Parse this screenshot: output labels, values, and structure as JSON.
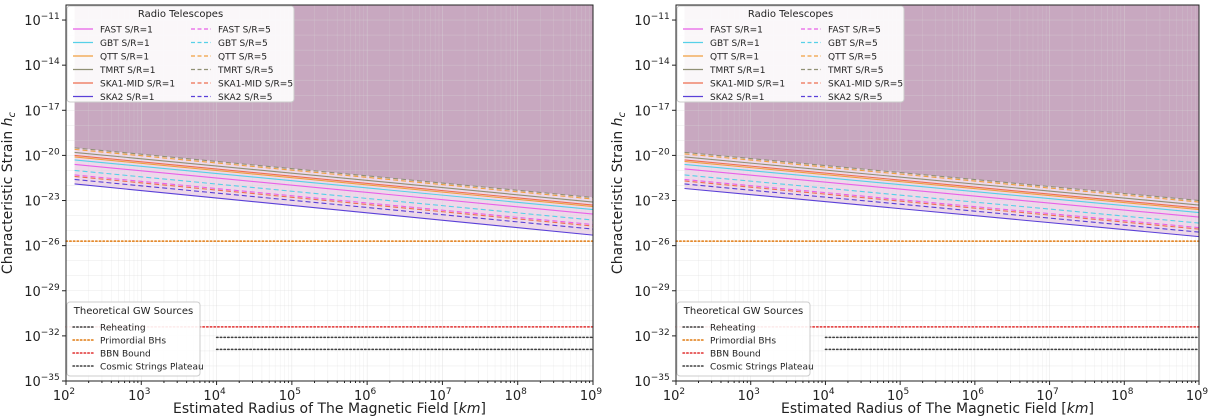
{
  "chart_data": [
    {
      "type": "line",
      "xlabel": "Estimated Radius of The Magnetic Field",
      "xlabel_unit": "km",
      "ylabel": "Characteristic Strain",
      "ylabel_symbol": "h",
      "ylabel_subscript": "c",
      "xscale": "log",
      "yscale": "log",
      "xlim": [
        100,
        1000000000
      ],
      "ylim": [
        1e-35,
        1e-10
      ],
      "x_ticks": [
        2,
        3,
        4,
        5,
        6,
        7,
        8,
        9
      ],
      "y_ticks": [
        -35,
        -32,
        -29,
        -26,
        -23,
        -20,
        -17,
        -14,
        -11
      ],
      "tick_base": "10",
      "grid": true,
      "legend_telescopes": {
        "title": "Radio Telescopes",
        "placement": "top-left"
      },
      "legend_sources": {
        "title": "Theoretical GW Sources",
        "placement": "lower-left"
      },
      "telescope_series": [
        {
          "name": "FAST S/R=1",
          "color": "#e860e8",
          "style": "solid",
          "x": [
            130,
            1000000000
          ],
          "y": [
            -20.6,
            -23.9
          ]
        },
        {
          "name": "GBT S/R=1",
          "color": "#56d0e8",
          "style": "solid",
          "x": [
            130,
            1000000000
          ],
          "y": [
            -20.3,
            -23.6
          ]
        },
        {
          "name": "QTT S/R=1",
          "color": "#f0a040",
          "style": "solid",
          "x": [
            130,
            1000000000
          ],
          "y": [
            -20.1,
            -23.4
          ]
        },
        {
          "name": "TMRT S/R=1",
          "color": "#909075",
          "style": "solid",
          "x": [
            130,
            1000000000
          ],
          "y": [
            -19.8,
            -23.1
          ]
        },
        {
          "name": "SKA1-MID S/R=1",
          "color": "#ee6e50",
          "style": "solid",
          "x": [
            130,
            1000000000
          ],
          "y": [
            -20.0,
            -23.3
          ]
        },
        {
          "name": "SKA2 S/R=1",
          "color": "#5a40d8",
          "style": "solid",
          "x": [
            130,
            1000000000
          ],
          "y": [
            -21.9,
            -25.3
          ]
        },
        {
          "name": "FAST S/R=5",
          "color": "#e860e8",
          "style": "dashed",
          "x": [
            130,
            1000000000
          ],
          "y": [
            -21.3,
            -24.6
          ]
        },
        {
          "name": "GBT S/R=5",
          "color": "#56d0e8",
          "style": "dashed",
          "x": [
            130,
            1000000000
          ],
          "y": [
            -21.0,
            -24.3
          ]
        },
        {
          "name": "QTT S/R=5",
          "color": "#f0a040",
          "style": "dashed",
          "x": [
            130,
            1000000000
          ],
          "y": [
            -19.6,
            -22.9
          ]
        },
        {
          "name": "TMRT S/R=5",
          "color": "#909075",
          "style": "dashed",
          "x": [
            130,
            1000000000
          ],
          "y": [
            -19.5,
            -22.8
          ]
        },
        {
          "name": "SKA1-MID S/R=5",
          "color": "#ee6e50",
          "style": "dashed",
          "x": [
            130,
            1000000000
          ],
          "y": [
            -21.4,
            -24.7
          ]
        },
        {
          "name": "SKA2 S/R=5",
          "color": "#5a40d8",
          "style": "dashed",
          "x": [
            130,
            1000000000
          ],
          "y": [
            -21.6,
            -24.9
          ]
        }
      ],
      "shaded_regions": {
        "upper_color": "#c8a8c0",
        "band_color": "#eed8ea",
        "band_between": [
          -21.9,
          -25.3
        ]
      },
      "source_series": [
        {
          "name": "Reheating",
          "color": "#404040",
          "style": "dotted",
          "x": [
            10000,
            1000000000
          ],
          "y": -32.9
        },
        {
          "name": "Primordial BHs",
          "color": "#e07a10",
          "style": "dotted",
          "x": [
            100,
            1000000000
          ],
          "y": -25.7
        },
        {
          "name": "BBN Bound",
          "color": "#e03030",
          "style": "dotted",
          "x": [
            100,
            1000000000
          ],
          "y": -31.4
        },
        {
          "name": "Cosmic Strings Plateau",
          "color": "#404040",
          "style": "dotted",
          "x": [
            10000,
            1000000000
          ],
          "y": -32.1
        }
      ]
    },
    {
      "type": "line",
      "xlabel": "Estimated Radius of The Magnetic Field",
      "xlabel_unit": "km",
      "ylabel": "Characteristic Strain",
      "ylabel_symbol": "h",
      "ylabel_subscript": "c",
      "xscale": "log",
      "yscale": "log",
      "xlim": [
        100,
        1000000000
      ],
      "ylim": [
        1e-35,
        1e-10
      ],
      "x_ticks": [
        2,
        3,
        4,
        5,
        6,
        7,
        8,
        9
      ],
      "y_ticks": [
        -35,
        -32,
        -29,
        -26,
        -23,
        -20,
        -17,
        -14,
        -11
      ],
      "tick_base": "10",
      "grid": true,
      "legend_telescopes": {
        "title": "Radio Telescopes",
        "placement": "top-left"
      },
      "legend_sources": {
        "title": "Theoretical GW Sources",
        "placement": "lower-left"
      },
      "telescope_series": [
        {
          "name": "FAST S/R=1",
          "color": "#e860e8",
          "style": "solid",
          "x": [
            130,
            1000000000
          ],
          "y": [
            -20.9,
            -24.1
          ]
        },
        {
          "name": "GBT S/R=1",
          "color": "#56d0e8",
          "style": "solid",
          "x": [
            130,
            1000000000
          ],
          "y": [
            -20.6,
            -23.8
          ]
        },
        {
          "name": "QTT S/R=1",
          "color": "#f0a040",
          "style": "solid",
          "x": [
            130,
            1000000000
          ],
          "y": [
            -20.4,
            -23.6
          ]
        },
        {
          "name": "TMRT S/R=1",
          "color": "#909075",
          "style": "solid",
          "x": [
            130,
            1000000000
          ],
          "y": [
            -20.1,
            -23.3
          ]
        },
        {
          "name": "SKA1-MID S/R=1",
          "color": "#ee6e50",
          "style": "solid",
          "x": [
            130,
            1000000000
          ],
          "y": [
            -20.3,
            -23.5
          ]
        },
        {
          "name": "SKA2 S/R=1",
          "color": "#5a40d8",
          "style": "solid",
          "x": [
            130,
            1000000000
          ],
          "y": [
            -22.2,
            -25.4
          ]
        },
        {
          "name": "FAST S/R=5",
          "color": "#e860e8",
          "style": "dashed",
          "x": [
            130,
            1000000000
          ],
          "y": [
            -21.6,
            -24.8
          ]
        },
        {
          "name": "GBT S/R=5",
          "color": "#56d0e8",
          "style": "dashed",
          "x": [
            130,
            1000000000
          ],
          "y": [
            -21.3,
            -24.5
          ]
        },
        {
          "name": "QTT S/R=5",
          "color": "#f0a040",
          "style": "dashed",
          "x": [
            130,
            1000000000
          ],
          "y": [
            -19.9,
            -23.1
          ]
        },
        {
          "name": "TMRT S/R=5",
          "color": "#909075",
          "style": "dashed",
          "x": [
            130,
            1000000000
          ],
          "y": [
            -19.8,
            -23.0
          ]
        },
        {
          "name": "SKA1-MID S/R=5",
          "color": "#ee6e50",
          "style": "dashed",
          "x": [
            130,
            1000000000
          ],
          "y": [
            -21.7,
            -24.9
          ]
        },
        {
          "name": "SKA2 S/R=5",
          "color": "#5a40d8",
          "style": "dashed",
          "x": [
            130,
            1000000000
          ],
          "y": [
            -21.9,
            -25.1
          ]
        }
      ],
      "shaded_regions": {
        "upper_color": "#c8a8c0",
        "band_color": "#eed8ea",
        "band_between": [
          -22.2,
          -25.4
        ]
      },
      "source_series": [
        {
          "name": "Reheating",
          "color": "#404040",
          "style": "dotted",
          "x": [
            10000,
            1000000000
          ],
          "y": -32.9
        },
        {
          "name": "Primordial BHs",
          "color": "#e07a10",
          "style": "dotted",
          "x": [
            100,
            1000000000
          ],
          "y": -25.7
        },
        {
          "name": "BBN Bound",
          "color": "#e03030",
          "style": "dotted",
          "x": [
            100,
            1000000000
          ],
          "y": -31.4
        },
        {
          "name": "Cosmic Strings Plateau",
          "color": "#404040",
          "style": "dotted",
          "x": [
            10000,
            1000000000
          ],
          "y": -32.1
        }
      ]
    }
  ]
}
